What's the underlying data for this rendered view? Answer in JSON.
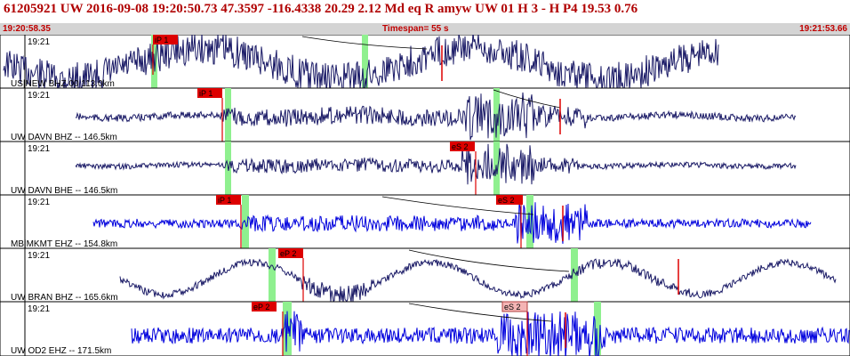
{
  "header": {
    "title": "61205921 UW 2016-09-08 19:20:50.73   47.3597 -116.4338  20.29  2.12 Md  eq  R amyw    UW 01  H   3  -  H P4   19.53  0.76",
    "start_time": "19:20:58.35",
    "timespan": "Timespan=  55 s",
    "end_time": "19:21:53.66"
  },
  "colors": {
    "header_text": "#b00000",
    "subheader_bg": "#d4d4d4",
    "trace_dark": "#1a1a66",
    "trace_blue": "#0000dd",
    "pick_box": "#dd0000",
    "pick_box_weak": "#f4b4b4",
    "pick_window": "#8ff08f",
    "model_curve": "#000000"
  },
  "traces": [
    {
      "time_label": "19:21",
      "station_label": "US|NEW BHZ 00 113.0km",
      "trace_color": "dark",
      "picks": [
        {
          "label": "iP 1",
          "weak": false
        }
      ]
    },
    {
      "time_label": "19:21",
      "station_label": "UW DAVN BHZ -- 146.5km",
      "trace_color": "dark",
      "picks": [
        {
          "label": "iP 1",
          "weak": false
        }
      ]
    },
    {
      "time_label": "19:21",
      "station_label": "UW DAVN BHE -- 146.5km",
      "trace_color": "dark",
      "picks": [
        {
          "label": "eS 2",
          "weak": false
        }
      ]
    },
    {
      "time_label": "19:21",
      "station_label": "MB|MKMT EHZ -- 154.8km",
      "trace_color": "blue",
      "picks": [
        {
          "label": "iP 1",
          "weak": false
        },
        {
          "label": "eS 2",
          "weak": false
        }
      ]
    },
    {
      "time_label": "19:21",
      "station_label": "UW BRAN BHZ -- 165.6km",
      "trace_color": "dark",
      "picks": [
        {
          "label": "eP 2",
          "weak": false
        }
      ]
    },
    {
      "time_label": "19:21",
      "station_label": "UW OD2 EHZ -- 171.5km",
      "trace_color": "blue",
      "picks": [
        {
          "label": "eP 2",
          "weak": false
        },
        {
          "label": "eS 2",
          "weak": true
        }
      ]
    }
  ]
}
